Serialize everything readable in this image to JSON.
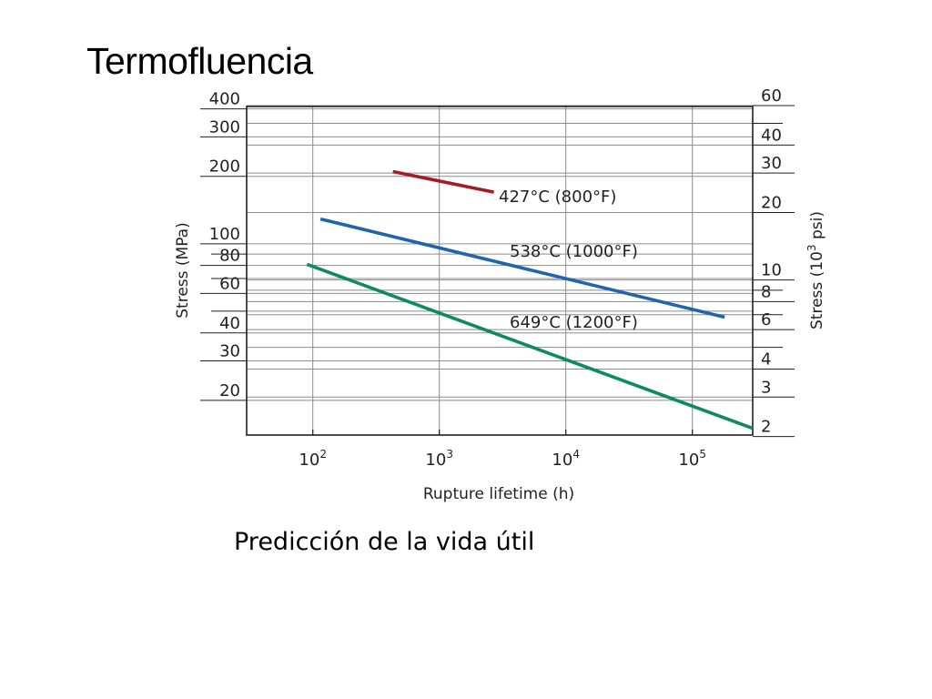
{
  "slide": {
    "title": "Termofluencia",
    "caption": "Predicción de la vida útil"
  },
  "chart_data": {
    "type": "line",
    "title": "",
    "xlabel": "Rupture lifetime (h)",
    "ylabel": "Stress (MPa)",
    "y2label_prefix": "Stress (10",
    "y2label_exp": "3",
    "y2label_suffix": " psi)",
    "x_scale": "log",
    "y_scale": "log",
    "xlim": [
      30,
      300000
    ],
    "ylim": [
      14,
      410
    ],
    "y2lim_ksi": [
      2,
      60
    ],
    "grid": true,
    "x_ticks": [
      {
        "value": 100,
        "base": "10",
        "exp": "2"
      },
      {
        "value": 1000,
        "base": "10",
        "exp": "3"
      },
      {
        "value": 10000,
        "base": "10",
        "exp": "4"
      },
      {
        "value": 100000,
        "base": "10",
        "exp": "5"
      }
    ],
    "y_ticks": [
      {
        "value": 400,
        "label": "400"
      },
      {
        "value": 300,
        "label": "300"
      },
      {
        "value": 200,
        "label": "200"
      },
      {
        "value": 100,
        "label": "100"
      },
      {
        "value": 80,
        "label": "80"
      },
      {
        "value": 60,
        "label": "60"
      },
      {
        "value": 40,
        "label": "40"
      },
      {
        "value": 30,
        "label": "30"
      },
      {
        "value": 20,
        "label": "20"
      }
    ],
    "y_minor_ticks": [
      90,
      70,
      50
    ],
    "y2_ticks": [
      {
        "value": 60,
        "label": "60"
      },
      {
        "value": 40,
        "label": "40"
      },
      {
        "value": 30,
        "label": "30"
      },
      {
        "value": 20,
        "label": "20"
      },
      {
        "value": 10,
        "label": "10"
      },
      {
        "value": 8,
        "label": "8"
      },
      {
        "value": 6,
        "label": "6"
      },
      {
        "value": 4,
        "label": "4"
      },
      {
        "value": 3,
        "label": "3"
      },
      {
        "value": 2,
        "label": "2"
      }
    ],
    "y2_minor_ticks": [
      50,
      9,
      7,
      5
    ],
    "series": [
      {
        "name": "427°C (800°F)",
        "color": "#a31b25",
        "points": [
          [
            430,
            210
          ],
          [
            2700,
            170
          ]
        ]
      },
      {
        "name": "538°C (1000°F)",
        "color": "#1f64ad",
        "points": [
          [
            115,
            129
          ],
          [
            180000,
            47
          ]
        ]
      },
      {
        "name": "649°C (1200°F)",
        "color": "#0e8a5f",
        "points": [
          [
            90,
            81
          ],
          [
            300000,
            15
          ]
        ]
      }
    ]
  }
}
